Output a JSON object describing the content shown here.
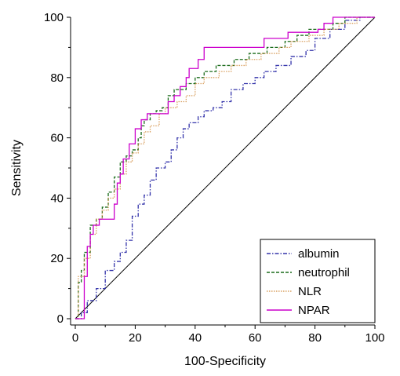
{
  "chart_data": {
    "type": "line",
    "title": "",
    "xlabel": "100-Specificity",
    "ylabel": "Sensitivity",
    "xlim": [
      0,
      100
    ],
    "ylim": [
      0,
      100
    ],
    "xticks": [
      0,
      20,
      40,
      60,
      80,
      100
    ],
    "yticks": [
      0,
      20,
      40,
      60,
      80,
      100
    ],
    "grid": false,
    "legend_position": "bottom-right",
    "reference_line": [
      [
        0,
        0
      ],
      [
        100,
        100
      ]
    ],
    "series": [
      {
        "name": "albumin",
        "color": "#3333aa",
        "dash": "dashdot",
        "points": [
          [
            0,
            0
          ],
          [
            2,
            0
          ],
          [
            2,
            2
          ],
          [
            4,
            2
          ],
          [
            4,
            6
          ],
          [
            7,
            6
          ],
          [
            7,
            10
          ],
          [
            10,
            10
          ],
          [
            10,
            16
          ],
          [
            13,
            16
          ],
          [
            13,
            19
          ],
          [
            15,
            19
          ],
          [
            15,
            22
          ],
          [
            17,
            22
          ],
          [
            17,
            26
          ],
          [
            19,
            26
          ],
          [
            19,
            34
          ],
          [
            21,
            34
          ],
          [
            21,
            38
          ],
          [
            23,
            38
          ],
          [
            23,
            41
          ],
          [
            25,
            41
          ],
          [
            25,
            46
          ],
          [
            27,
            46
          ],
          [
            27,
            50
          ],
          [
            30,
            50
          ],
          [
            30,
            52
          ],
          [
            32,
            52
          ],
          [
            32,
            56
          ],
          [
            34,
            56
          ],
          [
            34,
            60
          ],
          [
            36,
            60
          ],
          [
            36,
            63
          ],
          [
            38,
            63
          ],
          [
            38,
            65
          ],
          [
            41,
            65
          ],
          [
            41,
            67
          ],
          [
            43,
            67
          ],
          [
            43,
            69
          ],
          [
            46,
            69
          ],
          [
            46,
            70
          ],
          [
            49,
            70
          ],
          [
            49,
            72
          ],
          [
            52,
            72
          ],
          [
            52,
            76
          ],
          [
            56,
            76
          ],
          [
            56,
            78
          ],
          [
            60,
            78
          ],
          [
            60,
            80
          ],
          [
            63,
            80
          ],
          [
            63,
            82
          ],
          [
            67,
            82
          ],
          [
            67,
            84
          ],
          [
            72,
            84
          ],
          [
            72,
            87
          ],
          [
            77,
            87
          ],
          [
            77,
            89
          ],
          [
            80,
            89
          ],
          [
            80,
            93
          ],
          [
            85,
            93
          ],
          [
            85,
            96
          ],
          [
            90,
            96
          ],
          [
            90,
            99
          ],
          [
            95,
            99
          ],
          [
            95,
            100
          ],
          [
            100,
            100
          ]
        ]
      },
      {
        "name": "neutrophil",
        "color": "#1a6b1a",
        "dash": "dashed",
        "points": [
          [
            0,
            0
          ],
          [
            1,
            0
          ],
          [
            1,
            12
          ],
          [
            2,
            12
          ],
          [
            2,
            16
          ],
          [
            3,
            16
          ],
          [
            3,
            22
          ],
          [
            5,
            22
          ],
          [
            5,
            31
          ],
          [
            7,
            31
          ],
          [
            7,
            33
          ],
          [
            9,
            33
          ],
          [
            9,
            37
          ],
          [
            11,
            37
          ],
          [
            11,
            42
          ],
          [
            13,
            42
          ],
          [
            13,
            47
          ],
          [
            15,
            47
          ],
          [
            15,
            52
          ],
          [
            17,
            52
          ],
          [
            17,
            54
          ],
          [
            19,
            54
          ],
          [
            19,
            56
          ],
          [
            21,
            56
          ],
          [
            21,
            60
          ],
          [
            22,
            60
          ],
          [
            22,
            64
          ],
          [
            23,
            64
          ],
          [
            23,
            66
          ],
          [
            25,
            66
          ],
          [
            25,
            68
          ],
          [
            27,
            68
          ],
          [
            27,
            69
          ],
          [
            29,
            69
          ],
          [
            29,
            70
          ],
          [
            31,
            70
          ],
          [
            31,
            74
          ],
          [
            33,
            74
          ],
          [
            33,
            76
          ],
          [
            37,
            76
          ],
          [
            37,
            78
          ],
          [
            40,
            78
          ],
          [
            40,
            80
          ],
          [
            43,
            80
          ],
          [
            43,
            82
          ],
          [
            47,
            82
          ],
          [
            47,
            84
          ],
          [
            53,
            84
          ],
          [
            53,
            86
          ],
          [
            58,
            86
          ],
          [
            58,
            88
          ],
          [
            64,
            88
          ],
          [
            64,
            90
          ],
          [
            70,
            90
          ],
          [
            70,
            92
          ],
          [
            74,
            92
          ],
          [
            74,
            94
          ],
          [
            78,
            94
          ],
          [
            78,
            96
          ],
          [
            86,
            96
          ],
          [
            86,
            98
          ],
          [
            90,
            98
          ],
          [
            90,
            100
          ],
          [
            100,
            100
          ]
        ]
      },
      {
        "name": "NLR",
        "color": "#d9a060",
        "dash": "dotted",
        "points": [
          [
            0,
            0
          ],
          [
            1,
            0
          ],
          [
            1,
            14
          ],
          [
            3,
            14
          ],
          [
            3,
            20
          ],
          [
            5,
            20
          ],
          [
            5,
            28
          ],
          [
            7,
            28
          ],
          [
            7,
            33
          ],
          [
            9,
            33
          ],
          [
            9,
            36
          ],
          [
            11,
            36
          ],
          [
            11,
            40
          ],
          [
            13,
            40
          ],
          [
            13,
            43
          ],
          [
            15,
            43
          ],
          [
            15,
            48
          ],
          [
            17,
            48
          ],
          [
            17,
            52
          ],
          [
            19,
            52
          ],
          [
            19,
            55
          ],
          [
            21,
            55
          ],
          [
            21,
            58
          ],
          [
            23,
            58
          ],
          [
            23,
            62
          ],
          [
            25,
            62
          ],
          [
            25,
            64
          ],
          [
            28,
            64
          ],
          [
            28,
            68
          ],
          [
            30,
            68
          ],
          [
            30,
            70
          ],
          [
            34,
            70
          ],
          [
            34,
            72
          ],
          [
            37,
            72
          ],
          [
            37,
            74
          ],
          [
            40,
            74
          ],
          [
            40,
            78
          ],
          [
            43,
            78
          ],
          [
            43,
            80
          ],
          [
            48,
            80
          ],
          [
            48,
            82
          ],
          [
            52,
            82
          ],
          [
            52,
            84
          ],
          [
            57,
            84
          ],
          [
            57,
            86
          ],
          [
            62,
            86
          ],
          [
            62,
            88
          ],
          [
            68,
            88
          ],
          [
            68,
            90
          ],
          [
            72,
            90
          ],
          [
            72,
            92
          ],
          [
            78,
            92
          ],
          [
            78,
            94
          ],
          [
            83,
            94
          ],
          [
            83,
            96
          ],
          [
            88,
            96
          ],
          [
            88,
            98
          ],
          [
            94,
            98
          ],
          [
            94,
            100
          ],
          [
            100,
            100
          ]
        ]
      },
      {
        "name": "NPAR",
        "color": "#cc00cc",
        "dash": "solid",
        "points": [
          [
            0,
            0
          ],
          [
            3,
            0
          ],
          [
            3,
            14
          ],
          [
            4,
            14
          ],
          [
            4,
            24
          ],
          [
            5,
            24
          ],
          [
            5,
            28
          ],
          [
            6,
            28
          ],
          [
            6,
            31
          ],
          [
            8,
            31
          ],
          [
            8,
            33
          ],
          [
            13,
            33
          ],
          [
            13,
            38
          ],
          [
            14,
            38
          ],
          [
            14,
            45
          ],
          [
            15,
            45
          ],
          [
            15,
            48
          ],
          [
            16,
            48
          ],
          [
            16,
            53
          ],
          [
            18,
            53
          ],
          [
            18,
            58
          ],
          [
            20,
            58
          ],
          [
            20,
            63
          ],
          [
            22,
            63
          ],
          [
            22,
            66
          ],
          [
            24,
            66
          ],
          [
            24,
            68
          ],
          [
            31,
            68
          ],
          [
            31,
            72
          ],
          [
            33,
            72
          ],
          [
            33,
            74
          ],
          [
            35,
            74
          ],
          [
            35,
            77
          ],
          [
            37,
            77
          ],
          [
            37,
            80
          ],
          [
            38,
            80
          ],
          [
            38,
            83
          ],
          [
            41,
            83
          ],
          [
            41,
            86
          ],
          [
            43,
            86
          ],
          [
            43,
            90
          ],
          [
            63,
            90
          ],
          [
            63,
            93
          ],
          [
            71,
            93
          ],
          [
            71,
            95
          ],
          [
            81,
            95
          ],
          [
            81,
            96
          ],
          [
            83,
            96
          ],
          [
            83,
            98
          ],
          [
            86,
            98
          ],
          [
            86,
            100
          ],
          [
            100,
            100
          ]
        ]
      }
    ]
  }
}
